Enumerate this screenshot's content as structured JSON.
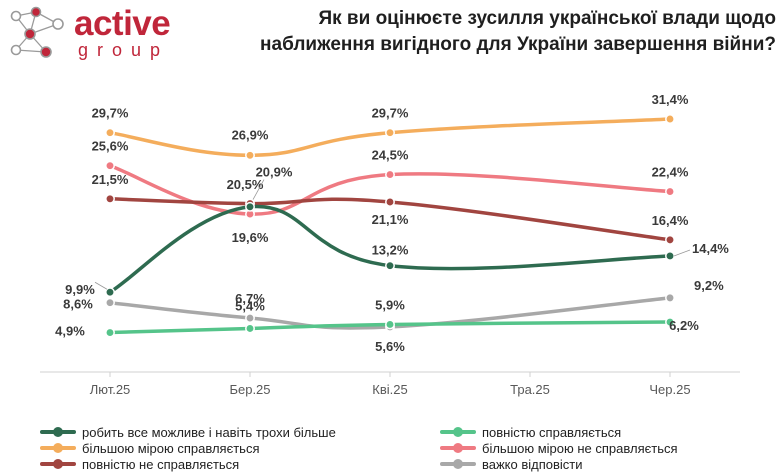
{
  "header": {
    "logo_word": "active",
    "logo_sub": "group",
    "title_line1": "Як ви оцінюєте зусилля української влади щодо",
    "title_line2": "наближення вигідного для України завершення війни?"
  },
  "chart_data": {
    "type": "line",
    "x": [
      "Лют.25",
      "Бер.25",
      "Кві.25",
      "Тра.25",
      "Чер.25"
    ],
    "ylim": [
      0,
      35
    ],
    "grid": false,
    "legend_placement": "bottom",
    "series": [
      {
        "name": "робить все можливе і навіть трохи більше",
        "color": "#2e6b50",
        "values": [
          9.9,
          20.5,
          13.2,
          null,
          14.4
        ],
        "labels": [
          "9,9%",
          "20,5%",
          "13,2%",
          "",
          "14,4%"
        ]
      },
      {
        "name": "повністю справляється",
        "color": "#55c48a",
        "values": [
          4.9,
          5.4,
          5.9,
          null,
          6.2
        ],
        "labels": [
          "4,9%",
          "5,4%",
          "5,9%",
          "",
          "6,2%"
        ]
      },
      {
        "name": "більшою мірою справляється",
        "color": "#f4ad5c",
        "values": [
          29.7,
          26.9,
          29.7,
          null,
          31.4
        ],
        "labels": [
          "29,7%",
          "26,9%",
          "29,7%",
          "",
          "31,4%"
        ]
      },
      {
        "name": "більшою мірою не справляється",
        "color": "#ef7a82",
        "values": [
          25.6,
          19.6,
          24.5,
          null,
          22.4
        ],
        "labels": [
          "25,6%",
          "19,6%",
          "24,5%",
          "",
          "22,4%"
        ]
      },
      {
        "name": "повністю не справляється",
        "color": "#a14540",
        "values": [
          21.5,
          20.9,
          21.1,
          null,
          16.4
        ],
        "labels": [
          "21,5%",
          "20,9%",
          "21,1%",
          "",
          "16,4%"
        ]
      },
      {
        "name": "важко відповісти",
        "color": "#a8a8a8",
        "values": [
          8.6,
          6.7,
          5.6,
          null,
          9.2
        ],
        "labels": [
          "8,6%",
          "6,7%",
          "5,6%",
          "",
          "9,2%"
        ]
      }
    ]
  }
}
